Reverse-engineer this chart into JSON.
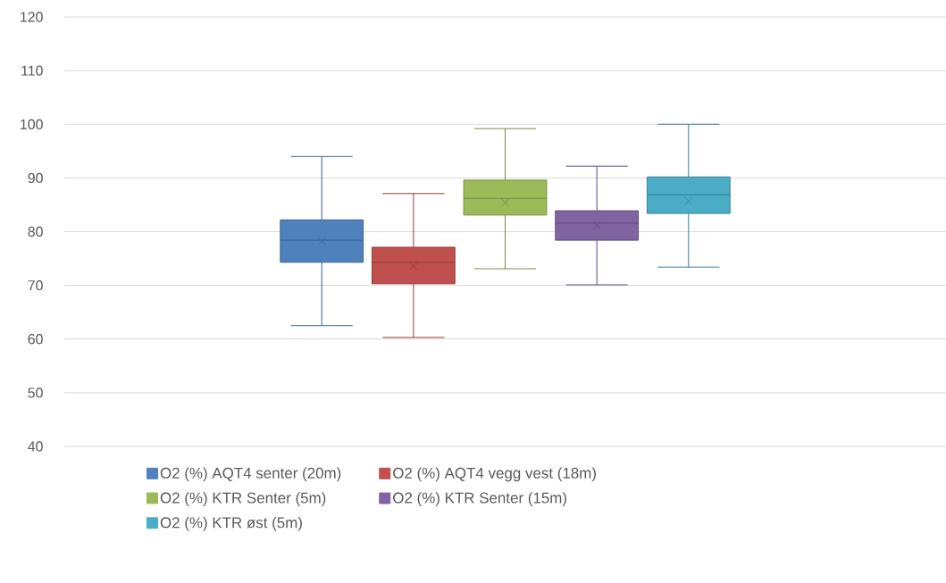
{
  "chart_data": {
    "type": "box",
    "categories": [
      null
    ],
    "series": [
      {
        "name": "O2 (%) AQT4 senter (20m)",
        "color": "#4f81bd",
        "boxes": [
          {
            "low": 62.5,
            "q1": 74.3,
            "median": 78.4,
            "q3": 82.2,
            "high": 94,
            "mean": 78.2
          }
        ]
      },
      {
        "name": "O2 (%) AQT4 vegg vest (18m)",
        "color": "#c0504d",
        "boxes": [
          {
            "low": 60.3,
            "q1": 70.3,
            "median": 74.3,
            "q3": 77.1,
            "high": 87.1,
            "mean": 73.6
          }
        ]
      },
      {
        "name": "O2 (%) KTR Senter (5m)",
        "color": "#9bbb59",
        "boxes": [
          {
            "low": 73.1,
            "q1": 83.1,
            "median": 86.2,
            "q3": 89.6,
            "high": 99.2,
            "mean": 85.4
          }
        ]
      },
      {
        "name": "O2 (%) KTR Senter (15m)",
        "color": "#8064a2",
        "boxes": [
          {
            "low": 70.1,
            "q1": 78.4,
            "median": 81.6,
            "q3": 83.9,
            "high": 92.2,
            "mean": 81.2
          }
        ]
      },
      {
        "name": "O2 (%) KTR øst (5m)",
        "color": "#4bacc6",
        "boxes": [
          {
            "low": 73.4,
            "q1": 83.4,
            "median": 86.9,
            "q3": 90.2,
            "high": 100,
            "mean": 85.7
          }
        ]
      }
    ],
    "ylim": [
      40,
      120
    ],
    "yticks": [
      40,
      50,
      60,
      70,
      80,
      90,
      100,
      110,
      120
    ],
    "grid": "y",
    "legend": "bottom",
    "marker": "cross"
  }
}
